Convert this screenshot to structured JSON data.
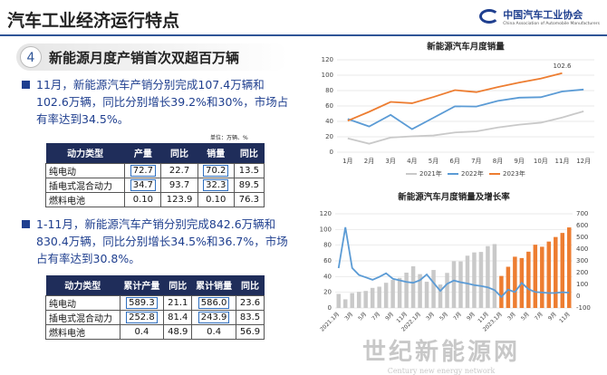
{
  "header": {
    "title": "汽车工业经济运行特点",
    "logo_cn": "中国汽车工业协会",
    "logo_en": "China Association of Automobile Manufacturers"
  },
  "section": {
    "number": "4",
    "title": "新能源月度产销首次双超百万辆"
  },
  "bullets": [
    "11月，新能源汽车产销分别完成107.4万辆和102.6万辆，同比分别增长39.2%和30%，市场占有率达到34.5%。",
    "1-11月，新能源汽车产销分别完成842.6万辆和830.4万辆，同比分别增长34.5%和36.7%，市场占有率达到30.8%。"
  ],
  "tables": [
    {
      "unit": "单位：万辆、%",
      "headers": [
        "动力类型",
        "产量",
        "同比",
        "销量",
        "同比"
      ],
      "rows": [
        [
          "纯电动",
          "72.7",
          "22.7",
          "70.2",
          "13.5"
        ],
        [
          "插电式混合动力",
          "34.7",
          "93.7",
          "32.3",
          "89.5"
        ],
        [
          "燃料电池",
          "0.10",
          "123.9",
          "0.10",
          "76.3"
        ]
      ]
    },
    {
      "headers": [
        "动力类型",
        "累计产量",
        "同比",
        "累计销量",
        "同比"
      ],
      "rows": [
        [
          "纯电动",
          "589.3",
          "21.1",
          "586.0",
          "23.6"
        ],
        [
          "插电式混合动力",
          "252.8",
          "81.4",
          "243.9",
          "83.5"
        ],
        [
          "燃料电池",
          "0.4",
          "48.9",
          "0.4",
          "56.9"
        ]
      ]
    }
  ],
  "watermark": {
    "cn": "世纪新能源网",
    "en": "Century new energy network"
  },
  "chart_data": [
    {
      "type": "line",
      "title": "新能源汽车月度销量",
      "categories": [
        "1月",
        "2月",
        "3月",
        "4月",
        "5月",
        "6月",
        "7月",
        "8月",
        "9月",
        "10月",
        "11月",
        "12月"
      ],
      "ylim": [
        0,
        120
      ],
      "yticks": [
        0,
        20,
        40,
        60,
        80,
        100,
        120
      ],
      "grid": true,
      "legend": "bottom",
      "series": [
        {
          "name": "2021年",
          "color": "#c9c9c9",
          "values": [
            17.9,
            11.0,
            19.0,
            20.6,
            21.7,
            25.6,
            27.1,
            32.1,
            35.7,
            38.3,
            45.0,
            53.1
          ]
        },
        {
          "name": "2022年",
          "color": "#5b9bd5",
          "values": [
            43.1,
            33.4,
            48.4,
            29.9,
            44.7,
            59.6,
            59.3,
            66.6,
            70.8,
            71.4,
            78.8,
            81.4
          ]
        },
        {
          "name": "2023年",
          "color": "#ed7d31",
          "values": [
            40.8,
            52.5,
            65.3,
            63.6,
            71.7,
            80.6,
            78.0,
            84.6,
            90.4,
            95.6,
            102.6,
            null
          ],
          "value_labels": [
            null,
            null,
            null,
            null,
            null,
            null,
            null,
            null,
            null,
            null,
            "102.6",
            null
          ]
        }
      ]
    },
    {
      "type": "bar",
      "title": "新能源汽车月度销量及增长率",
      "categories": [
        "2021.1月",
        null,
        "3月",
        null,
        "5月",
        null,
        "7月",
        null,
        "9月",
        null,
        "11月",
        null,
        "2022.1月",
        null,
        "3月",
        null,
        "5月",
        null,
        "7月",
        null,
        "9月",
        null,
        "11月",
        null,
        "2023.1月",
        null,
        "3月",
        null,
        "5月",
        null,
        "7月",
        null,
        "9月",
        null,
        "11月"
      ],
      "ylim": [
        0,
        120
      ],
      "yticks": [
        0,
        20,
        40,
        60,
        80,
        100,
        120
      ],
      "y2lim": [
        -100,
        700
      ],
      "y2ticks": [
        -100,
        0,
        100,
        200,
        300,
        400,
        500,
        600,
        700
      ],
      "grid": true,
      "series": [
        {
          "values": [
            17.9,
            11.0,
            19.0,
            20.6,
            21.7,
            25.6,
            27.1,
            32.1,
            35.7,
            38.3,
            45.0,
            53.1,
            43.1,
            33.4,
            48.4,
            29.9,
            44.7,
            59.6,
            59.3,
            66.6,
            70.8,
            71.4,
            78.8,
            81.4,
            40.8,
            52.5,
            65.3,
            63.6,
            71.7,
            80.6,
            78.0,
            84.6,
            90.4,
            95.6,
            102.6
          ],
          "colors": [
            "#c9c9c9",
            "#c9c9c9",
            "#c9c9c9",
            "#c9c9c9",
            "#c9c9c9",
            "#c9c9c9",
            "#c9c9c9",
            "#c9c9c9",
            "#c9c9c9",
            "#c9c9c9",
            "#c9c9c9",
            "#c9c9c9",
            "#c9c9c9",
            "#c9c9c9",
            "#c9c9c9",
            "#c9c9c9",
            "#c9c9c9",
            "#c9c9c9",
            "#c9c9c9",
            "#c9c9c9",
            "#c9c9c9",
            "#c9c9c9",
            "#c9c9c9",
            "#c9c9c9",
            "#ed7d31",
            "#ed7d31",
            "#ed7d31",
            "#ed7d31",
            "#ed7d31",
            "#ed7d31",
            "#ed7d31",
            "#ed7d31",
            "#ed7d31",
            "#ed7d31",
            "#ed7d31"
          ]
        },
        {
          "type": "line",
          "axis": "y2",
          "color": "#5b9bd5",
          "values": [
            238.5,
            585.4,
            239.5,
            180.3,
            159.9,
            139.3,
            164.3,
            194.7,
            148.1,
            134.9,
            121.1,
            114.1,
            135.8,
            184.8,
            114.2,
            44.6,
            105.2,
            133.0,
            118.6,
            107.6,
            93.9,
            86.6,
            75.2,
            51.8,
            -6.3,
            55.9,
            34.8,
            112.8,
            60.2,
            35.2,
            31.6,
            27.0,
            27.7,
            33.9,
            30.0
          ]
        }
      ]
    }
  ]
}
